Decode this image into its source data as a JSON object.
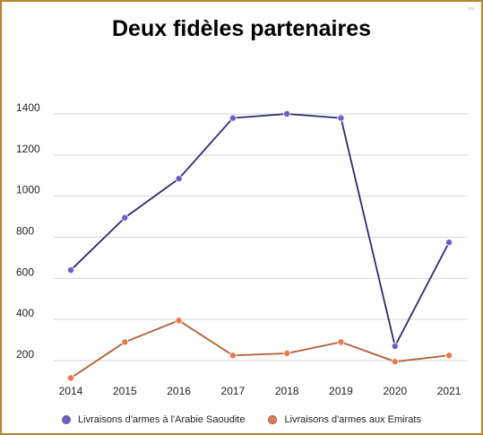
{
  "window": {
    "close_mark": "▫▫▫"
  },
  "chart_data": {
    "type": "line",
    "title": "Deux fidèles partenaires",
    "xlabel": "",
    "ylabel": "",
    "x": [
      "2014",
      "2015",
      "2016",
      "2017",
      "2018",
      "2019",
      "2020",
      "2021"
    ],
    "ylim": [
      100,
      1450
    ],
    "yticks": [
      200,
      400,
      600,
      800,
      1000,
      1200,
      1400
    ],
    "grid": true,
    "legend_position": "bottom",
    "series": [
      {
        "name": "Livraisons d'armes à l'Arabie Saoudite",
        "values": [
          640,
          895,
          1085,
          1380,
          1400,
          1380,
          270,
          775
        ],
        "line_color": "#2d2a73",
        "marker_color": "#6f5bd0"
      },
      {
        "name": "Livraisons d'armes aux Emirats",
        "values": [
          115,
          290,
          395,
          225,
          235,
          290,
          195,
          225
        ],
        "line_color": "#b05e35",
        "marker_color": "#ec7847"
      }
    ]
  }
}
